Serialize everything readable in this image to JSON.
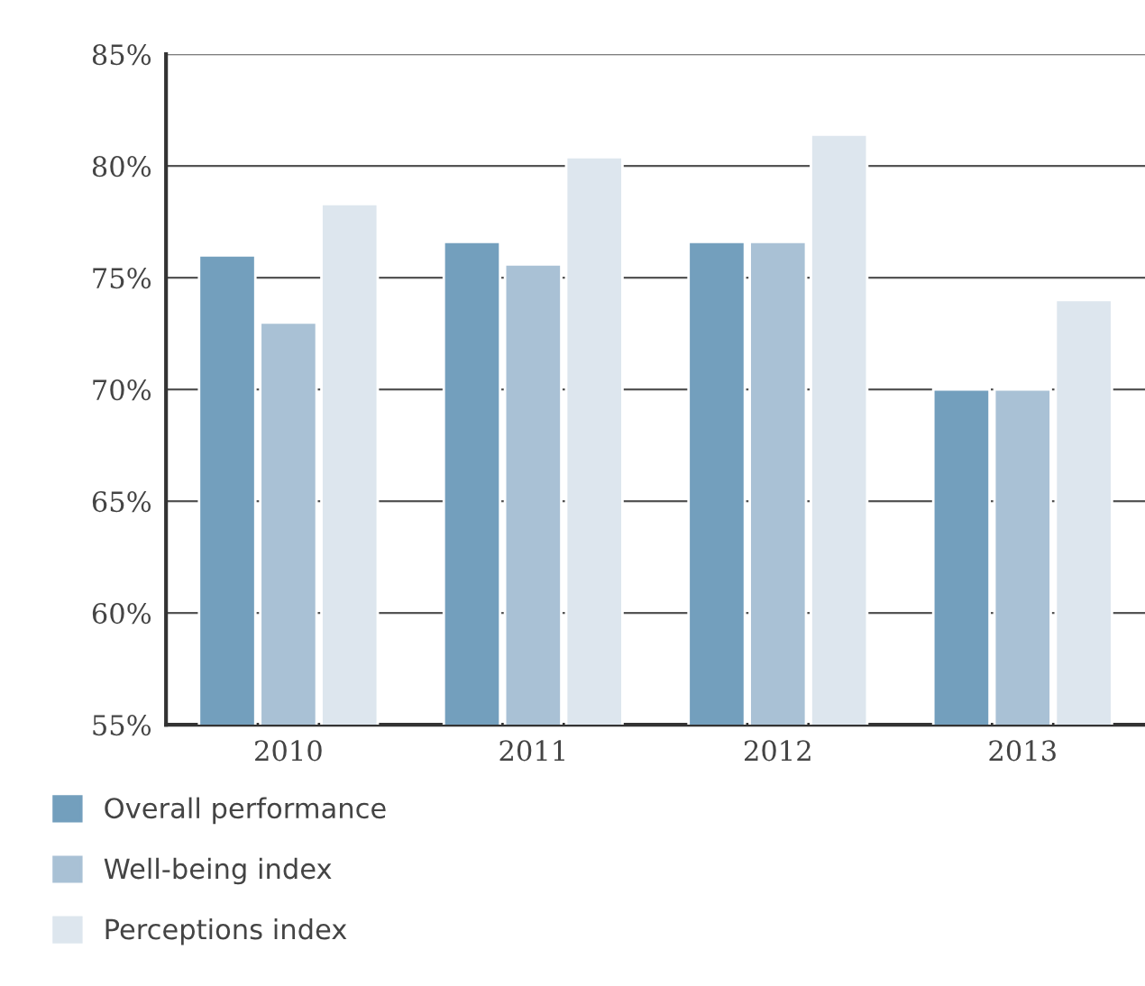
{
  "chart_data": {
    "type": "bar",
    "categories": [
      "2010",
      "2011",
      "2012",
      "2013"
    ],
    "series": [
      {
        "name": "Overall performance",
        "color": "#739fbd",
        "values": [
          76,
          76.6,
          76.6,
          70
        ]
      },
      {
        "name": "Well-being index",
        "color": "#a9c1d5",
        "values": [
          73,
          75.6,
          76.6,
          70
        ]
      },
      {
        "name": "Perceptions index",
        "color": "#dde6ee",
        "values": [
          78.3,
          80.4,
          81.4,
          74
        ]
      }
    ],
    "ylim": [
      55,
      85
    ],
    "yticks": [
      {
        "value": 55,
        "label": "55%"
      },
      {
        "value": 60,
        "label": "60%"
      },
      {
        "value": 65,
        "label": "65%"
      },
      {
        "value": 70,
        "label": "70%"
      },
      {
        "value": 75,
        "label": "75%"
      },
      {
        "value": 80,
        "label": "80%"
      },
      {
        "value": 85,
        "label": "85%"
      }
    ],
    "grid": "y",
    "legend": "bottom"
  }
}
